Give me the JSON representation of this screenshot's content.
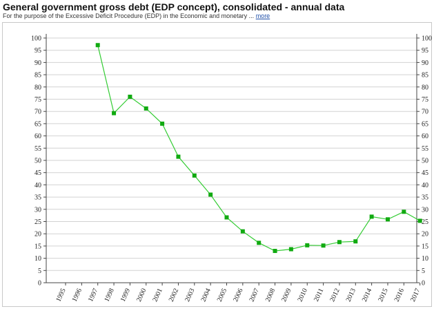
{
  "header": {
    "title": "General government gross debt (EDP concept), consolidated - annual data",
    "subtitle": "For the purpose of the Excessive Deficit Procedure (EDP) in the Economic and monetary ...",
    "more_link": "more"
  },
  "chart_data": {
    "type": "line",
    "title": "",
    "xlabel": "",
    "ylabel": "",
    "x": [
      "1995",
      "1996",
      "1997",
      "1998",
      "1999",
      "2000",
      "2001",
      "2002",
      "2003",
      "2004",
      "2005",
      "2006",
      "2007",
      "2008",
      "2009",
      "2010",
      "2011",
      "2012",
      "2013",
      "2014",
      "2015",
      "2016",
      "2017"
    ],
    "series": [
      {
        "values": [
          null,
          null,
          97.1,
          69.3,
          76.0,
          71.2,
          65.0,
          51.5,
          43.8,
          36.0,
          26.7,
          21.0,
          16.3,
          13.0,
          13.7,
          15.3,
          15.2,
          16.6,
          16.9,
          27.0,
          25.9,
          29.0,
          25.3
        ],
        "color": "#33cc33",
        "marker": "square"
      }
    ],
    "ylim": [
      0,
      100
    ],
    "yticks": [
      "0",
      "5",
      "10",
      "15",
      "20",
      "25",
      "30",
      "35",
      "40",
      "45",
      "50",
      "55",
      "60",
      "65",
      "70",
      "75",
      "80",
      "85",
      "90",
      "95",
      "100"
    ],
    "grid": true,
    "legend": "none",
    "dual_y_axis": true
  }
}
